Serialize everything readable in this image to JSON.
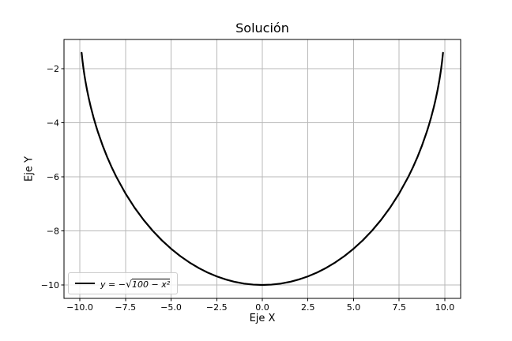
{
  "figure": {
    "title": "Solución",
    "background": "#ffffff"
  },
  "axes": {
    "xlabel": "Eje X",
    "ylabel": "Eje Y"
  },
  "legend": {
    "prefix": "y = −",
    "sqrt_symbol": "√",
    "radicand": "100 − x²"
  },
  "chart_data": {
    "type": "line",
    "title": "Solución",
    "xlabel": "Eje X",
    "ylabel": "Eje Y",
    "grid": true,
    "legend_position": "lower left",
    "xlim": [
      -10.866,
      10.866
    ],
    "ylim": [
      -10.496,
      -0.92
    ],
    "xticks": {
      "values": [
        -10,
        -7.5,
        -5,
        -2.5,
        0,
        2.5,
        5,
        7.5,
        10
      ],
      "labels": [
        "−10.0",
        "−7.5",
        "−5.0",
        "−2.5",
        "0.0",
        "2.5",
        "5.0",
        "7.5",
        "10.0"
      ]
    },
    "yticks": {
      "values": [
        -2,
        -4,
        -6,
        -8,
        -10
      ],
      "labels": [
        "−2",
        "−4",
        "−6",
        "−8",
        "−10"
      ]
    },
    "colors": {
      "grid": "#b8b8b8",
      "spine": "#000000",
      "line": "#000000",
      "text": "#000000"
    },
    "series": [
      {
        "name": "y = −√(100 − x²)",
        "color": "#000000",
        "x": [
          -9.9,
          -9.85,
          -9.8,
          -9.75,
          -9.7,
          -9.6,
          -9.5,
          -9.4,
          -9.25,
          -9.1,
          -9,
          -8.75,
          -8.5,
          -8.25,
          -8,
          -7.5,
          -7,
          -6.5,
          -6,
          -5.5,
          -5,
          -4.5,
          -4,
          -3.5,
          -3,
          -2.5,
          -2,
          -1.5,
          -1,
          -0.5,
          0,
          0.5,
          1,
          1.5,
          2,
          2.5,
          3,
          3.5,
          4,
          4.5,
          5,
          5.5,
          6,
          6.5,
          7,
          7.5,
          8,
          8.25,
          8.5,
          8.75,
          9,
          9.1,
          9.25,
          9.4,
          9.5,
          9.6,
          9.7,
          9.75,
          9.8,
          9.85,
          9.9
        ],
        "y": [
          -1.411,
          -1.726,
          -1.99,
          -2.222,
          -2.431,
          -2.8,
          -3.122,
          -3.412,
          -3.8,
          -4.146,
          -4.359,
          -4.841,
          -5.268,
          -5.651,
          -6,
          -6.614,
          -7.141,
          -7.599,
          -8,
          -8.352,
          -8.66,
          -8.93,
          -9.165,
          -9.368,
          -9.539,
          -9.682,
          -9.798,
          -9.887,
          -9.95,
          -9.987,
          -10,
          -9.987,
          -9.95,
          -9.887,
          -9.798,
          -9.682,
          -9.539,
          -9.368,
          -9.165,
          -8.93,
          -8.66,
          -8.352,
          -8,
          -7.599,
          -7.141,
          -6.614,
          -6,
          -5.651,
          -5.268,
          -4.841,
          -4.359,
          -4.146,
          -3.8,
          -3.412,
          -3.122,
          -2.8,
          -2.431,
          -2.222,
          -1.99,
          -1.726,
          -1.411
        ]
      }
    ]
  }
}
